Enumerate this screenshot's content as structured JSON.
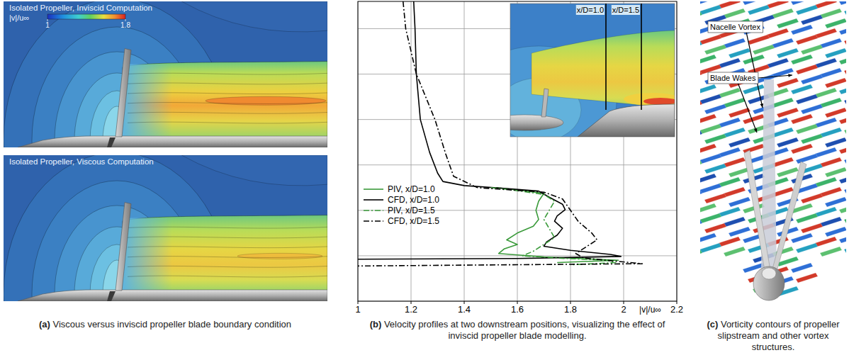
{
  "chart_data": {
    "type": "line",
    "x_label": "|v|/u∞",
    "xlim": [
      1,
      2.2
    ],
    "xticks": [
      1,
      1.2,
      1.4,
      1.6,
      1.8,
      2,
      2.2
    ],
    "ylim": [
      0,
      1.32
    ],
    "yticks": [
      0,
      0.2,
      0.4,
      0.6,
      0.8,
      1.0,
      1.2
    ],
    "grid": true,
    "tick_labels": "x",
    "legend": "center left",
    "annotations": [
      "x/D=1.0",
      "x/D=1.5"
    ],
    "series": [
      {
        "name": "PIV, x/D=1.0",
        "color": "#3a9a3a",
        "line_style": "solid",
        "x": [
          1.52,
          1.6,
          1.7,
          1.68,
          1.67,
          1.68,
          1.66,
          1.6,
          1.56,
          1.6,
          1.55,
          1.53,
          1.7,
          1.98,
          1.75
        ],
        "values": [
          0.5,
          0.49,
          0.475,
          0.44,
          0.4,
          0.36,
          0.33,
          0.3,
          0.27,
          0.25,
          0.23,
          0.21,
          0.195,
          0.18,
          0.17
        ]
      },
      {
        "name": "CFD, x/D=1.0",
        "color": "#000000",
        "line_style": "solid",
        "x": [
          1.21,
          1.215,
          1.22,
          1.235,
          1.27,
          1.3,
          1.32,
          1.4,
          1.55,
          1.68,
          1.72,
          1.77,
          1.78,
          1.75,
          1.74,
          1.77,
          1.75,
          1.71,
          1.7,
          1.8,
          1.95,
          1.99,
          1.6,
          1.0
        ],
        "values": [
          1.32,
          1.2,
          1.0,
          0.8,
          0.655,
          0.564,
          0.527,
          0.509,
          0.497,
          0.485,
          0.458,
          0.427,
          0.403,
          0.376,
          0.352,
          0.321,
          0.291,
          0.261,
          0.242,
          0.224,
          0.206,
          0.197,
          0.188,
          0.185
        ]
      },
      {
        "name": "PIV, x/D=1.5",
        "color": "#3a9a3a",
        "line_style": "dashdot",
        "x": [
          1.5,
          1.58,
          1.7,
          1.74,
          1.72,
          1.7,
          1.72,
          1.74,
          1.7,
          1.66,
          1.62,
          1.75,
          1.94,
          1.97,
          1.8
        ],
        "values": [
          0.5,
          0.49,
          0.47,
          0.44,
          0.4,
          0.36,
          0.32,
          0.28,
          0.25,
          0.22,
          0.2,
          0.19,
          0.18,
          0.17,
          0.16
        ]
      },
      {
        "name": "CFD, x/D=1.5",
        "color": "#000000",
        "line_style": "dashdot",
        "x": [
          1.17,
          1.18,
          1.22,
          1.29,
          1.33,
          1.36,
          1.45,
          1.7,
          1.77,
          1.8,
          1.83,
          1.88,
          1.9,
          1.86,
          1.82,
          1.85,
          2.07,
          1.0
        ],
        "values": [
          1.32,
          1.2,
          1.0,
          0.8,
          0.65,
          0.55,
          0.5,
          0.48,
          0.45,
          0.4,
          0.35,
          0.3,
          0.27,
          0.24,
          0.21,
          0.19,
          0.165,
          0.155
        ]
      }
    ]
  },
  "panel_a": {
    "images": [
      {
        "title": "Isolated Propeller, Inviscid Computation"
      },
      {
        "title": "Isolated Propeller, Viscous Computation"
      }
    ],
    "colorbar": {
      "label": "|v|/u∞",
      "range": [
        1,
        1.8
      ],
      "ticks": [
        1,
        1.8
      ]
    }
  },
  "panel_c": {
    "labels": [
      "Nacelle Vortex",
      "Blade Wakes"
    ]
  },
  "captions": [
    {
      "label": "(a)",
      "text": "Viscous versus inviscid propeller blade boundary condition"
    },
    {
      "label": "(b)",
      "text": "Velocity profiles at two downstream positions, visualizing the effect of inviscid propeller blade modelling."
    },
    {
      "label": "(c)",
      "text": "Vorticity contours of propeller slipstream and other vortex structures."
    }
  ]
}
